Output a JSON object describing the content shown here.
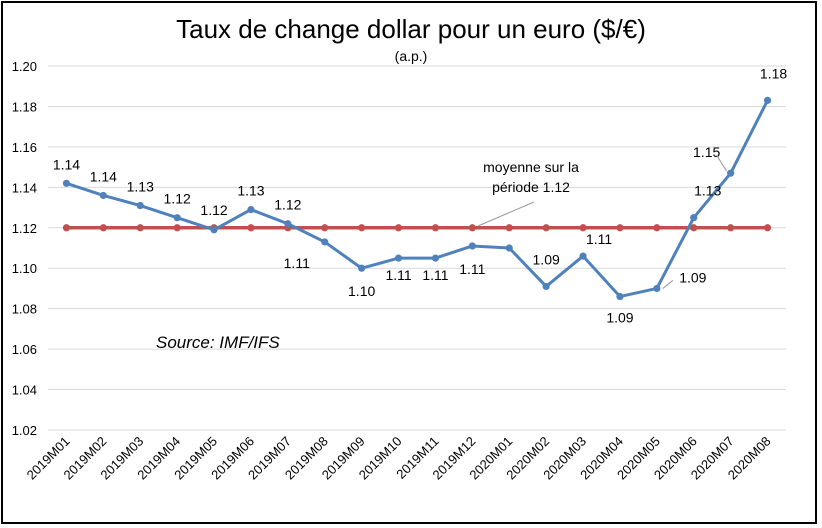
{
  "chart_data": {
    "type": "line",
    "title": "Taux de change dollar pour un euro ($/€)",
    "subtitle": "(a.p.)",
    "categories": [
      "2019M01",
      "2019M02",
      "2019M03",
      "2019M04",
      "2019M05",
      "2019M06",
      "2019M07",
      "2019M08",
      "2019M09",
      "2019M10",
      "2019M11",
      "2019M12",
      "2020M01",
      "2020M02",
      "2020M03",
      "2020M04",
      "2020M05",
      "2020M06",
      "2020M07",
      "2020M08"
    ],
    "series": [
      {
        "color": "#4F81BD",
        "values": [
          1.142,
          1.136,
          1.131,
          1.125,
          1.119,
          1.129,
          1.122,
          1.113,
          1.1,
          1.105,
          1.105,
          1.111,
          1.11,
          1.091,
          1.106,
          1.086,
          1.09,
          1.125,
          1.147,
          1.183
        ],
        "labels": [
          "1.14",
          "1.14",
          "1.13",
          "1.12",
          "1.12",
          "1.13",
          "1.12",
          "1.11",
          "1.10",
          "1.11",
          "1.11",
          "1.11",
          "",
          "1.09",
          "1.11",
          "1.09",
          "1.09",
          "1.13",
          "1.15",
          "1.18"
        ]
      },
      {
        "color": "#C0504D",
        "values": [
          1.12,
          1.12,
          1.12,
          1.12,
          1.12,
          1.12,
          1.12,
          1.12,
          1.12,
          1.12,
          1.12,
          1.12,
          1.12,
          1.12,
          1.12,
          1.12,
          1.12,
          1.12,
          1.12,
          1.12
        ]
      }
    ],
    "ylim": [
      1.02,
      1.2
    ],
    "yticks": [
      "1.02",
      "1.04",
      "1.06",
      "1.08",
      "1.10",
      "1.12",
      "1.14",
      "1.16",
      "1.18",
      "1.20"
    ],
    "grid": true,
    "annotations": {
      "mean_line1": "moyenne sur la",
      "mean_line2": "période 1.12",
      "source": "Source: IMF/IFS"
    }
  }
}
